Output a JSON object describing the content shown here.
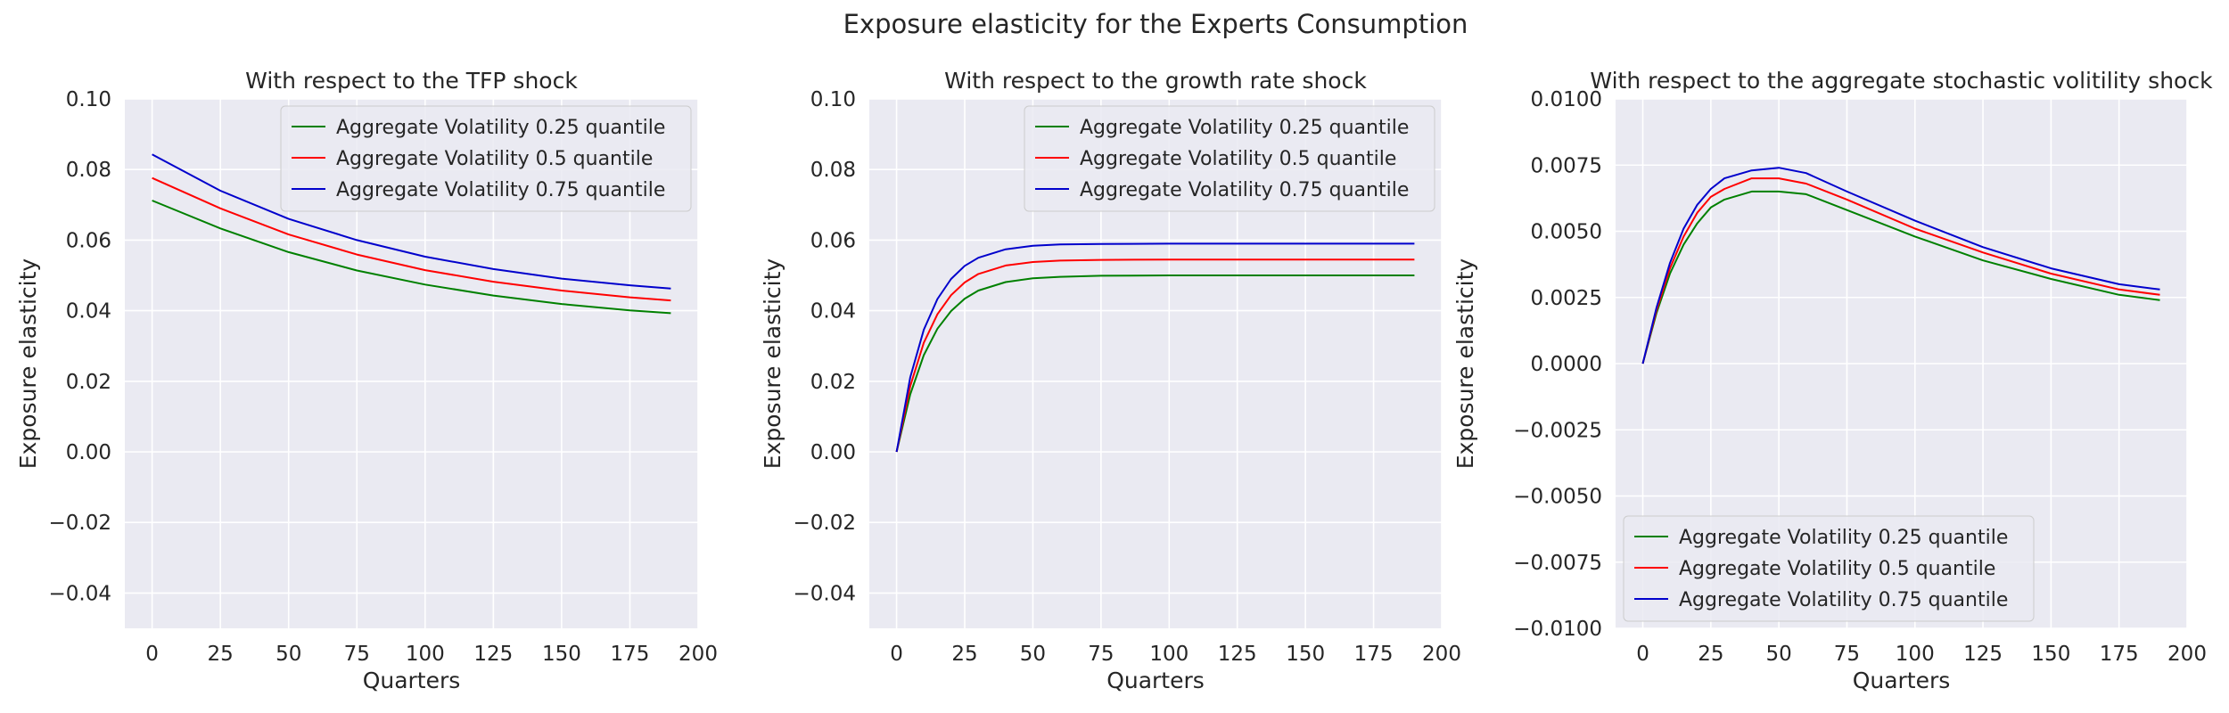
{
  "figure_title": "Exposure elasticity for the Experts Consumption",
  "chart_data": [
    {
      "type": "line",
      "title": "With respect to the TFP shock",
      "xlabel": "Quarters",
      "ylabel": "Exposure elasticity",
      "xlim": [
        -10,
        200
      ],
      "ylim": [
        -0.05,
        0.1
      ],
      "xticks": [
        0,
        25,
        50,
        75,
        100,
        125,
        150,
        175,
        200
      ],
      "xtick_labels": [
        "0",
        "25",
        "50",
        "75",
        "100",
        "125",
        "150",
        "175",
        "200"
      ],
      "yticks": [
        -0.04,
        -0.02,
        0.0,
        0.02,
        0.04,
        0.06,
        0.08,
        0.1
      ],
      "ytick_labels": [
        "−0.04",
        "−0.02",
        "0.00",
        "0.02",
        "0.04",
        "0.06",
        "0.08",
        "0.10"
      ],
      "grid": true,
      "legend_position": "upper-right",
      "x": [
        0,
        25,
        50,
        75,
        100,
        125,
        150,
        175,
        190
      ],
      "series": [
        {
          "name": "Aggregate Volatility 0.25 quantile",
          "color": "#008000",
          "values": [
            0.0712,
            0.0633,
            0.0566,
            0.0514,
            0.0474,
            0.0443,
            0.0419,
            0.0401,
            0.0393
          ]
        },
        {
          "name": "Aggregate Volatility 0.5 quantile",
          "color": "#ff0000",
          "values": [
            0.0776,
            0.069,
            0.0616,
            0.0559,
            0.0515,
            0.0482,
            0.0457,
            0.0438,
            0.0429
          ]
        },
        {
          "name": "Aggregate Volatility 0.75 quantile",
          "color": "#0000cc",
          "values": [
            0.0843,
            0.074,
            0.066,
            0.06,
            0.0553,
            0.0518,
            0.0491,
            0.0472,
            0.0463
          ]
        }
      ]
    },
    {
      "type": "line",
      "title": "With respect to the growth rate shock",
      "xlabel": "Quarters",
      "ylabel": "Exposure elasticity",
      "xlim": [
        -10,
        200
      ],
      "ylim": [
        -0.05,
        0.1
      ],
      "xticks": [
        0,
        25,
        50,
        75,
        100,
        125,
        150,
        175,
        200
      ],
      "xtick_labels": [
        "0",
        "25",
        "50",
        "75",
        "100",
        "125",
        "150",
        "175",
        "200"
      ],
      "yticks": [
        -0.04,
        -0.02,
        0.0,
        0.02,
        0.04,
        0.06,
        0.08,
        0.1
      ],
      "ytick_labels": [
        "−0.04",
        "−0.02",
        "0.00",
        "0.02",
        "0.04",
        "0.06",
        "0.08",
        "0.10"
      ],
      "grid": true,
      "legend_position": "upper-right",
      "x": [
        0,
        5,
        10,
        15,
        20,
        25,
        30,
        40,
        50,
        60,
        75,
        100,
        125,
        150,
        175,
        190
      ],
      "series": [
        {
          "name": "Aggregate Volatility 0.25 quantile",
          "color": "#008000",
          "values": [
            0.0,
            0.0163,
            0.0274,
            0.0349,
            0.0399,
            0.0434,
            0.0457,
            0.0481,
            0.0492,
            0.0496,
            0.0499,
            0.05,
            0.05,
            0.05,
            0.05,
            0.05
          ]
        },
        {
          "name": "Aggregate Volatility 0.5 quantile",
          "color": "#ff0000",
          "values": [
            0.0,
            0.0186,
            0.0309,
            0.039,
            0.0444,
            0.048,
            0.0504,
            0.0528,
            0.0538,
            0.0542,
            0.0544,
            0.0545,
            0.0545,
            0.0545,
            0.0545,
            0.0545
          ]
        },
        {
          "name": "Aggregate Volatility 0.75 quantile",
          "color": "#0000cc",
          "values": [
            0.0,
            0.0211,
            0.0346,
            0.0433,
            0.049,
            0.0527,
            0.055,
            0.0574,
            0.0584,
            0.0588,
            0.0589,
            0.059,
            0.059,
            0.059,
            0.059,
            0.059
          ]
        }
      ]
    },
    {
      "type": "line",
      "title": "With respect to the aggregate stochastic volitility shock",
      "xlabel": "Quarters",
      "ylabel": "Exposure elasticity",
      "xlim": [
        -10,
        200
      ],
      "ylim": [
        -0.01,
        0.01
      ],
      "xticks": [
        0,
        25,
        50,
        75,
        100,
        125,
        150,
        175,
        200
      ],
      "xtick_labels": [
        "0",
        "25",
        "50",
        "75",
        "100",
        "125",
        "150",
        "175",
        "200"
      ],
      "yticks": [
        -0.01,
        -0.0075,
        -0.005,
        -0.0025,
        0.0,
        0.0025,
        0.005,
        0.0075,
        0.01
      ],
      "ytick_labels": [
        "−0.0100",
        "−0.0075",
        "−0.0050",
        "−0.0025",
        "0.0000",
        "0.0025",
        "0.0050",
        "0.0075",
        "0.0100"
      ],
      "grid": true,
      "legend_position": "lower-left",
      "x": [
        0,
        5,
        10,
        15,
        20,
        25,
        30,
        40,
        50,
        60,
        75,
        100,
        125,
        150,
        175,
        190
      ],
      "series": [
        {
          "name": "Aggregate Volatility 0.25 quantile",
          "color": "#008000",
          "values": [
            0.0,
            0.0019,
            0.0034,
            0.0045,
            0.0053,
            0.0059,
            0.0062,
            0.0065,
            0.0065,
            0.0064,
            0.0058,
            0.0048,
            0.0039,
            0.0032,
            0.0026,
            0.0024
          ]
        },
        {
          "name": "Aggregate Volatility 0.5 quantile",
          "color": "#ff0000",
          "values": [
            0.0,
            0.002,
            0.0036,
            0.0048,
            0.0057,
            0.0063,
            0.0066,
            0.007,
            0.007,
            0.0068,
            0.0062,
            0.0051,
            0.0042,
            0.0034,
            0.0028,
            0.0026
          ]
        },
        {
          "name": "Aggregate Volatility 0.75 quantile",
          "color": "#0000cc",
          "values": [
            0.0,
            0.0021,
            0.0038,
            0.0051,
            0.006,
            0.0066,
            0.007,
            0.0073,
            0.0074,
            0.0072,
            0.0065,
            0.0054,
            0.0044,
            0.0036,
            0.003,
            0.0028
          ]
        }
      ]
    }
  ]
}
